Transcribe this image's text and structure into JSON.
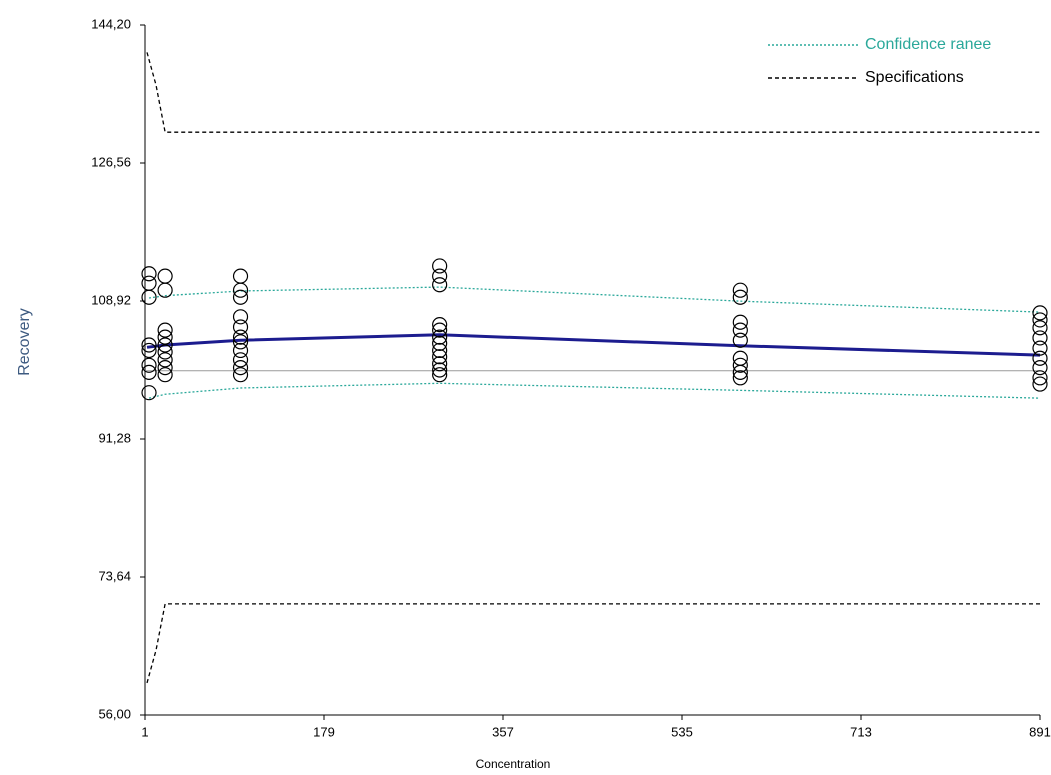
{
  "chart_data": {
    "type": "line",
    "xlabel": "Concentration",
    "ylabel": "Recovery",
    "xlim": [
      1,
      891
    ],
    "ylim": [
      56,
      144.2
    ],
    "xticks": [
      1,
      179,
      357,
      535,
      713,
      891
    ],
    "yticks": [
      {
        "value": 56,
        "label": "56,00"
      },
      {
        "value": 73.64,
        "label": "73,64"
      },
      {
        "value": 91.28,
        "label": "91,28"
      },
      {
        "value": 108.92,
        "label": "108,92"
      },
      {
        "value": 126.56,
        "label": "126,56"
      },
      {
        "value": 144.2,
        "label": "144,20"
      }
    ],
    "legend": "upper right",
    "reference_line": {
      "value": 100,
      "color": "#9a9a9a"
    },
    "series": [
      {
        "type": "line",
        "name": "Confidence ranee",
        "color": "#2aa89a",
        "style": "dotted",
        "x": [
          5,
          21,
          96,
          294,
          593,
          891
        ],
        "values": [
          109.3,
          109.6,
          110.2,
          110.7,
          108.9,
          107.5
        ]
      },
      {
        "type": "line",
        "color": "#2aa89a",
        "style": "dotted",
        "x": [
          5,
          21,
          96,
          294,
          593,
          891
        ],
        "values": [
          96.5,
          97.0,
          97.8,
          98.4,
          97.5,
          96.5
        ]
      },
      {
        "type": "line",
        "name": "Specifications",
        "color": "#000000",
        "style": "dashed",
        "x": [
          3,
          12,
          21,
          891
        ],
        "values": [
          140.7,
          136.5,
          130.5,
          130.5
        ]
      },
      {
        "type": "line",
        "color": "#000000",
        "style": "dashed",
        "x": [
          3,
          12,
          21,
          891
        ],
        "values": [
          60.1,
          64.3,
          70.2,
          70.2
        ]
      },
      {
        "type": "line",
        "color": "#1c1c8f",
        "style": "solid",
        "x": [
          3,
          21,
          96,
          294,
          593,
          891
        ],
        "values": [
          103.0,
          103.3,
          103.9,
          104.6,
          103.2,
          102.0
        ]
      },
      {
        "type": "scatter",
        "color": "#000000",
        "x": [
          5,
          5,
          5,
          5,
          5,
          5,
          5,
          5,
          21,
          21,
          21,
          21,
          21,
          21,
          21,
          21,
          21,
          96,
          96,
          96,
          96,
          96,
          96,
          96,
          96,
          96,
          96,
          96,
          294,
          294,
          294,
          294,
          294,
          294,
          294,
          294,
          294,
          294,
          294,
          294,
          593,
          593,
          593,
          593,
          593,
          593,
          593,
          593,
          593,
          891,
          891,
          891,
          891,
          891,
          891,
          891,
          891,
          891
        ],
        "values": [
          112.4,
          111.2,
          109.4,
          103.3,
          102.6,
          100.7,
          99.8,
          97.2,
          112.1,
          110.3,
          105.2,
          104.3,
          103.3,
          102.4,
          101.4,
          100.4,
          99.5,
          112.1,
          110.3,
          109.4,
          106.9,
          105.6,
          104.3,
          103.7,
          102.6,
          101.4,
          100.4,
          99.5,
          113.4,
          112.1,
          111.0,
          105.9,
          105.2,
          104.3,
          103.5,
          102.6,
          101.8,
          100.9,
          100.1,
          99.5,
          110.3,
          109.4,
          106.2,
          105.2,
          103.9,
          101.6,
          100.7,
          99.8,
          99.1,
          107.4,
          106.5,
          105.5,
          104.2,
          102.9,
          101.6,
          100.4,
          99.1,
          98.3
        ]
      }
    ]
  }
}
